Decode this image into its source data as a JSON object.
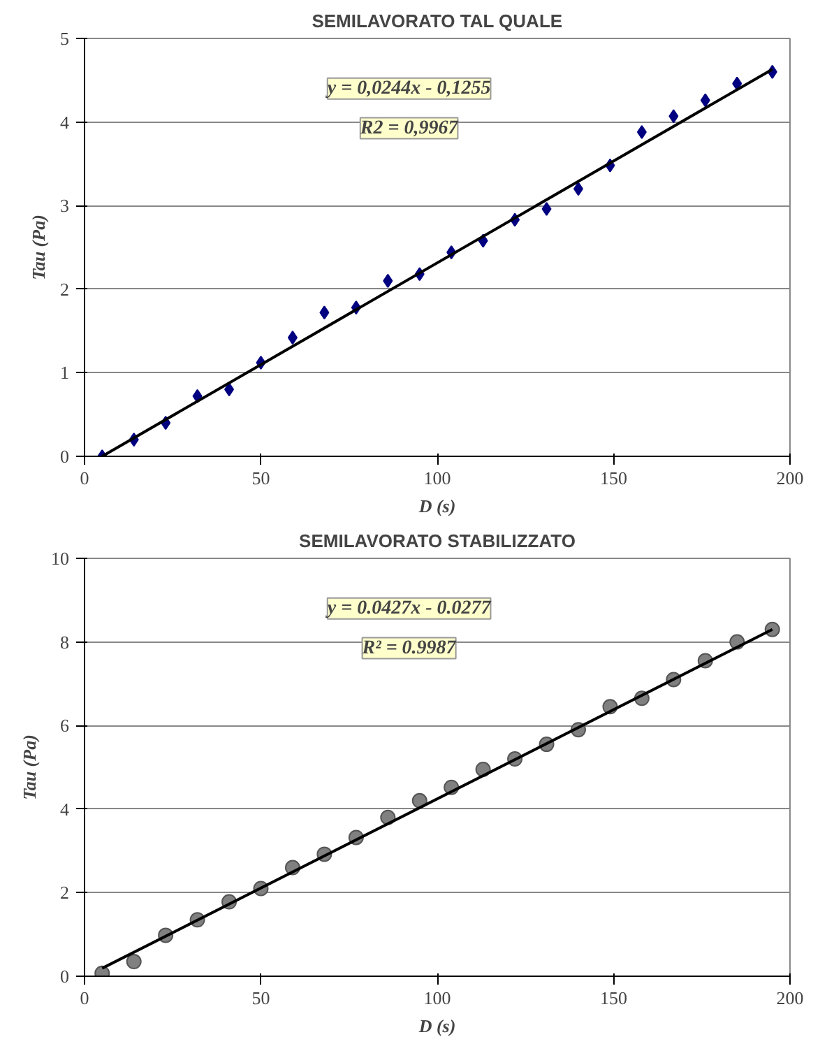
{
  "chart_data": [
    {
      "type": "scatter",
      "title": "SEMILAVORATO TAL QUALE",
      "xlabel": "D (s)",
      "ylabel": "Tau (Pa)",
      "annotations": [
        "y = 0,0244x - 0,1255",
        "R2 = 0,9967"
      ],
      "xlim": [
        0,
        200
      ],
      "xticks": [
        0,
        50,
        100,
        150,
        200
      ],
      "ylim": [
        0,
        5
      ],
      "yticks": [
        0,
        1,
        2,
        3,
        4,
        5
      ],
      "grid": "y",
      "series": [
        {
          "marker": "diamond",
          "color": "#000080",
          "x": [
            5,
            14,
            23,
            32,
            41,
            50,
            59,
            68,
            77,
            86,
            95,
            104,
            113,
            122,
            131,
            140,
            149,
            158,
            167,
            176,
            185,
            195
          ],
          "values": [
            0,
            0.2,
            0.4,
            0.72,
            0.8,
            1.12,
            1.42,
            1.72,
            1.78,
            2.1,
            2.18,
            2.44,
            2.58,
            2.83,
            2.96,
            3.2,
            3.48,
            3.88,
            4.07,
            4.26,
            4.46,
            4.6
          ]
        },
        {
          "type": "line",
          "marker": "none",
          "line_style": "solid",
          "color": "#000000",
          "x": [
            5,
            195
          ],
          "values": [
            0,
            4.63
          ]
        }
      ]
    },
    {
      "type": "scatter",
      "title": "SEMILAVORATO STABILIZZATO",
      "xlabel": "D (s)",
      "ylabel": "Tau (Pa)",
      "annotations": [
        "y = 0.0427x - 0.0277",
        "R² = 0.9987"
      ],
      "xlim": [
        0,
        200
      ],
      "xticks": [
        0,
        50,
        100,
        150,
        200
      ],
      "ylim": [
        0,
        10
      ],
      "yticks": [
        0,
        2,
        4,
        6,
        8,
        10
      ],
      "grid": "y",
      "series": [
        {
          "marker": "circle",
          "color": "#808080",
          "x": [
            5,
            14,
            23,
            32,
            41,
            50,
            59,
            68,
            77,
            86,
            95,
            104,
            113,
            122,
            131,
            140,
            149,
            158,
            167,
            176,
            185,
            195
          ],
          "values": [
            0.07,
            0.35,
            0.98,
            1.35,
            1.78,
            2.1,
            2.6,
            2.92,
            3.32,
            3.8,
            4.2,
            4.52,
            4.95,
            5.2,
            5.55,
            5.9,
            6.45,
            6.65,
            7.1,
            7.55,
            8.0,
            8.3
          ]
        },
        {
          "type": "line",
          "marker": "none",
          "line_style": "solid",
          "color": "#000000",
          "x": [
            5,
            195
          ],
          "values": [
            0.19,
            8.3
          ]
        }
      ]
    }
  ]
}
